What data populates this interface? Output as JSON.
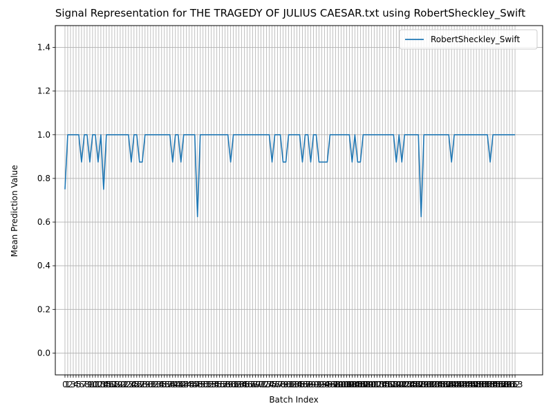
{
  "chart_data": {
    "type": "line",
    "title": "Signal Representation for THE TRAGEDY OF JULIUS CAESAR.txt using RobertSheckley_Swift",
    "xlabel": "Batch Index",
    "ylabel": "Mean Prediction Value",
    "ylim": [
      -0.1,
      1.5
    ],
    "xlim": [
      -3.5,
      173
    ],
    "yticks": [
      0.0,
      0.2,
      0.4,
      0.6,
      0.8,
      1.0,
      1.2,
      1.4
    ],
    "ytick_labels": [
      "0.0",
      "0.2",
      "0.4",
      "0.6",
      "0.8",
      "1.0",
      "1.2",
      "1.4"
    ],
    "xtick_count": 164,
    "grid": true,
    "legend_position": "upper right",
    "series": [
      {
        "name": "RobertSheckley_Swift",
        "color": "#1f77b4",
        "x": [
          0,
          1,
          2,
          3,
          4,
          5,
          6,
          7,
          8,
          9,
          10,
          11,
          12,
          13,
          14,
          15,
          16,
          17,
          18,
          19,
          20,
          21,
          22,
          23,
          24,
          25,
          26,
          27,
          28,
          29,
          30,
          31,
          32,
          33,
          34,
          35,
          36,
          37,
          38,
          39,
          40,
          41,
          42,
          43,
          44,
          45,
          46,
          47,
          48,
          49,
          50,
          51,
          52,
          53,
          54,
          55,
          56,
          57,
          58,
          59,
          60,
          61,
          62,
          63,
          64,
          65,
          66,
          67,
          68,
          69,
          70,
          71,
          72,
          73,
          74,
          75,
          76,
          77,
          78,
          79,
          80,
          81,
          82,
          83,
          84,
          85,
          86,
          87,
          88,
          89,
          90,
          91,
          92,
          93,
          94,
          95,
          96,
          97,
          98,
          99,
          100,
          101,
          102,
          103,
          104,
          105,
          106,
          107,
          108,
          109,
          110,
          111,
          112,
          113,
          114,
          115,
          116,
          117,
          118,
          119,
          120,
          121,
          122,
          123,
          124,
          125,
          126,
          127,
          128,
          129,
          130,
          131,
          132,
          133,
          134,
          135,
          136,
          137,
          138,
          139,
          140,
          141,
          142,
          143,
          144,
          145,
          146,
          147,
          148,
          149,
          150,
          151,
          152,
          153,
          154,
          155,
          156,
          157,
          158,
          159,
          160,
          161,
          162,
          163
        ],
        "values": [
          0.75,
          1.0,
          1.0,
          1.0,
          1.0,
          1.0,
          0.875,
          1.0,
          1.0,
          0.875,
          1.0,
          1.0,
          0.875,
          1.0,
          0.75,
          1.0,
          1.0,
          1.0,
          1.0,
          1.0,
          1.0,
          1.0,
          1.0,
          1.0,
          0.875,
          1.0,
          1.0,
          0.875,
          0.875,
          1.0,
          1.0,
          1.0,
          1.0,
          1.0,
          1.0,
          1.0,
          1.0,
          1.0,
          1.0,
          0.875,
          1.0,
          1.0,
          0.875,
          1.0,
          1.0,
          1.0,
          1.0,
          1.0,
          0.625,
          1.0,
          1.0,
          1.0,
          1.0,
          1.0,
          1.0,
          1.0,
          1.0,
          1.0,
          1.0,
          1.0,
          0.875,
          1.0,
          1.0,
          1.0,
          1.0,
          1.0,
          1.0,
          1.0,
          1.0,
          1.0,
          1.0,
          1.0,
          1.0,
          1.0,
          1.0,
          0.875,
          1.0,
          1.0,
          1.0,
          0.875,
          0.875,
          1.0,
          1.0,
          1.0,
          1.0,
          1.0,
          0.875,
          1.0,
          1.0,
          0.875,
          1.0,
          1.0,
          0.875,
          0.875,
          0.875,
          0.875,
          1.0,
          1.0,
          1.0,
          1.0,
          1.0,
          1.0,
          1.0,
          1.0,
          0.875,
          1.0,
          0.875,
          0.875,
          1.0,
          1.0,
          1.0,
          1.0,
          1.0,
          1.0,
          1.0,
          1.0,
          1.0,
          1.0,
          1.0,
          1.0,
          0.875,
          1.0,
          0.875,
          1.0,
          1.0,
          1.0,
          1.0,
          1.0,
          1.0,
          0.625,
          1.0,
          1.0,
          1.0,
          1.0,
          1.0,
          1.0,
          1.0,
          1.0,
          1.0,
          1.0,
          0.875,
          1.0,
          1.0,
          1.0,
          1.0,
          1.0,
          1.0,
          1.0,
          1.0,
          1.0,
          1.0,
          1.0,
          1.0,
          1.0,
          0.875,
          1.0,
          1.0,
          1.0,
          1.0,
          1.0,
          1.0,
          1.0,
          1.0,
          1.0
        ]
      }
    ]
  }
}
